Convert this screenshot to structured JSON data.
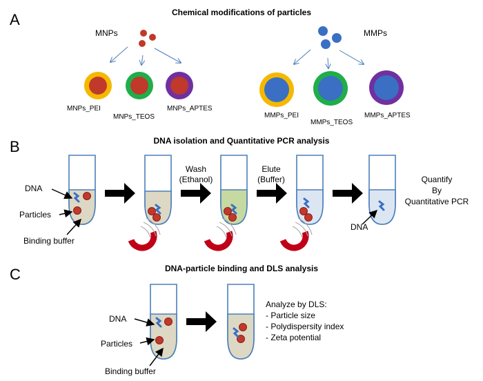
{
  "panels": {
    "a": {
      "letter": "A",
      "title": "Chemical modifications of particles",
      "mnps": {
        "label": "MNPs",
        "variants": [
          "MNPs_PEI",
          "MNPs_TEOS",
          "MNPs_APTES"
        ]
      },
      "mmps": {
        "label": "MMPs",
        "variants": [
          "MMPs_PEI",
          "MMPs_TEOS",
          "MMPs_APTES"
        ]
      }
    },
    "b": {
      "letter": "B",
      "title": "DNA isolation and Quantitative PCR analysis",
      "labels": {
        "dna": "DNA",
        "particles": "Particles",
        "buffer": "Binding buffer"
      },
      "wash": [
        "Wash",
        "(Ethanol)"
      ],
      "elute": [
        "Elute",
        "(Buffer)"
      ],
      "final_dna": "DNA",
      "quantify": [
        "Quantify",
        "By",
        "Quantitative PCR"
      ]
    },
    "c": {
      "letter": "C",
      "title": "DNA-particle binding and DLS analysis",
      "labels": {
        "dna": "DNA",
        "particles": "Particles",
        "buffer": "Binding buffer"
      },
      "analyze": [
        "Analyze by DLS:",
        "- Particle size",
        "- Polydispersity index",
        "- Zeta potential"
      ]
    }
  },
  "colors": {
    "mnp": "#c0392b",
    "mmp": "#3a6fc4",
    "pei": "#f5b800",
    "teos": "#1fae48",
    "aptes": "#7030a0",
    "buffer": "#ddd8c4",
    "ethanol": "#c6d9a0",
    "elution": "#dce6f2",
    "tube_outline": "#4a7ebb"
  }
}
